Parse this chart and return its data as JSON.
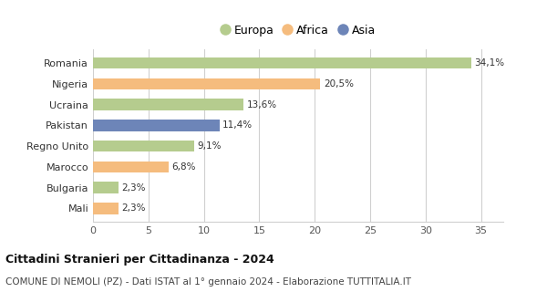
{
  "countries": [
    "Romania",
    "Nigeria",
    "Ucraina",
    "Pakistan",
    "Regno Unito",
    "Marocco",
    "Bulgaria",
    "Mali"
  ],
  "values": [
    34.1,
    20.5,
    13.6,
    11.4,
    9.1,
    6.8,
    2.3,
    2.3
  ],
  "labels": [
    "34,1%",
    "20,5%",
    "13,6%",
    "11,4%",
    "9,1%",
    "6,8%",
    "2,3%",
    "2,3%"
  ],
  "continents": [
    "Europa",
    "Africa",
    "Europa",
    "Asia",
    "Europa",
    "Africa",
    "Europa",
    "Africa"
  ],
  "colors": {
    "Europa": "#b5cc8e",
    "Africa": "#f5bc7e",
    "Asia": "#6d85b8"
  },
  "legend_labels": [
    "Europa",
    "Africa",
    "Asia"
  ],
  "title": "Cittadini Stranieri per Cittadinanza - 2024",
  "subtitle": "COMUNE DI NEMOLI (PZ) - Dati ISTAT al 1° gennaio 2024 - Elaborazione TUTTITALIA.IT",
  "xlim": [
    0,
    37
  ],
  "xticks": [
    0,
    5,
    10,
    15,
    20,
    25,
    30,
    35
  ],
  "background_color": "#ffffff",
  "grid_color": "#d0d0d0"
}
